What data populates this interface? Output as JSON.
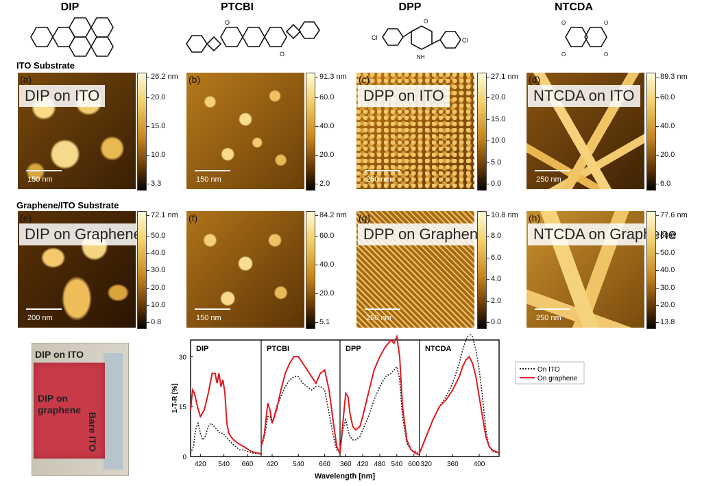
{
  "molecules": [
    {
      "name": "DIP"
    },
    {
      "name": "PTCBI"
    },
    {
      "name": "DPP"
    },
    {
      "name": "NTCDA"
    }
  ],
  "sections": {
    "ito": "ITO Substrate",
    "graphene": "Graphene/ITO Substrate"
  },
  "panels": [
    {
      "letter": "(a)",
      "overlay": "DIP on ITO",
      "scale": "150 nm",
      "cbar_max": "26.2 nm",
      "ticks": [
        "20.0",
        "15.0",
        "10.0",
        "3.3"
      ]
    },
    {
      "letter": "(b)",
      "overlay": "",
      "scale": "150 nm",
      "cbar_max": "91.3 nm",
      "ticks": [
        "60.0",
        "40.0",
        "20.0",
        "2.0"
      ]
    },
    {
      "letter": "(c)",
      "overlay": "DPP on ITO",
      "scale": "250 nm",
      "cbar_max": "27.1 nm",
      "ticks": [
        "20.0",
        "15.0",
        "10.0",
        "5.0",
        "0.0"
      ]
    },
    {
      "letter": "(d)",
      "overlay": "NTCDA on ITO",
      "scale": "250 nm",
      "cbar_max": "89.3 nm",
      "ticks": [
        "60.0",
        "40.0",
        "20.0",
        "6.0"
      ]
    },
    {
      "letter": "(e)",
      "overlay": "DIP on Graphene",
      "scale": "200 nm",
      "cbar_max": "72.1 nm",
      "ticks": [
        "50.0",
        "40.0",
        "30.0",
        "20.0",
        "10.0",
        "0.8"
      ]
    },
    {
      "letter": "(f)",
      "overlay": "",
      "scale": "150 nm",
      "cbar_max": "84.2 nm",
      "ticks": [
        "60.0",
        "40.0",
        "20.0",
        "5.1"
      ]
    },
    {
      "letter": "(g)",
      "overlay": "DPP on Graphene",
      "scale": "250 nm",
      "cbar_max": "10.8 nm",
      "ticks": [
        "8.0",
        "6.0",
        "4.0",
        "2.0",
        "0.0"
      ]
    },
    {
      "letter": "(h)",
      "overlay": "NTCDA on Graphene",
      "scale": "250 nm",
      "cbar_max": "77.6 nm",
      "ticks": [
        "60.0",
        "50.0",
        "40.0",
        "30.0",
        "20.0",
        "13.8"
      ]
    }
  ],
  "photo": {
    "top_label": "DIP on ITO",
    "center_label": "DIP on\ngraphene",
    "side_label": "Bare ITO"
  },
  "chart_data": {
    "type": "line",
    "ylabel": "1-T-R [%]",
    "xlabel": "Wavelength [nm]",
    "ylim": [
      0,
      35
    ],
    "yticks": [
      "0",
      "15",
      "30"
    ],
    "legend": [
      {
        "name": "On ITO",
        "style": "dotted",
        "color": "#222222"
      },
      {
        "name": "On graphene",
        "style": "solid",
        "color": "#e0191c"
      }
    ],
    "legend_placement": "right-outside",
    "subplots": [
      {
        "label": "DIP",
        "xlim": [
          370,
          730
        ],
        "xticks": [
          420,
          540,
          660
        ],
        "series": [
          {
            "name": "On ITO",
            "x": [
              370,
              385,
              395,
              408,
              420,
              432,
              445,
              460,
              475,
              490,
              505,
              520,
              535,
              550,
              565,
              580,
              600,
              620,
              640,
              660,
              690,
              730
            ],
            "y": [
              1,
              3,
              8,
              10,
              7,
              5,
              6,
              9,
              10,
              9,
              8,
              7,
              7,
              6,
              5,
              4,
              3,
              2,
              2,
              1.5,
              1,
              0.8
            ]
          },
          {
            "name": "On graphene",
            "x": [
              370,
              380,
              390,
              405,
              420,
              440,
              460,
              480,
              495,
              505,
              515,
              525,
              535,
              545,
              555,
              565,
              575,
              590,
              610,
              640,
              680,
              730
            ],
            "y": [
              14,
              20,
              19,
              15,
              12,
              14,
              19,
              25,
              25,
              22,
              25,
              21,
              23,
              19,
              10,
              7,
              6,
              5,
              4,
              3,
              1.5,
              0.8
            ]
          }
        ]
      },
      {
        "label": "PTCBI",
        "xlim": [
          370,
          730
        ],
        "xticks": [
          420,
          540,
          660
        ],
        "series": [
          {
            "name": "On ITO",
            "x": [
              370,
              385,
              400,
              410,
              420,
              440,
              460,
              480,
              500,
              520,
              540,
              560,
              580,
              600,
              620,
              640,
              660,
              680,
              700,
              715,
              730
            ],
            "y": [
              3,
              6,
              12,
              12,
              10,
              15,
              18,
              21,
              23,
              24,
              24,
              22,
              21,
              20,
              21,
              21,
              20,
              13,
              6,
              2,
              1
            ]
          },
          {
            "name": "On graphene",
            "x": [
              370,
              385,
              400,
              410,
              420,
              440,
              460,
              480,
              500,
              520,
              540,
              560,
              580,
              600,
              620,
              640,
              660,
              680,
              700,
              715,
              730
            ],
            "y": [
              3,
              7,
              16,
              14,
              10,
              14,
              20,
              25,
              28,
              30,
              30,
              28,
              26,
              24,
              22,
              25,
              26,
              20,
              10,
              3,
              1
            ]
          }
        ]
      },
      {
        "label": "DPP",
        "xlim": [
          340,
          620
        ],
        "xticks": [
          360,
          420,
          480,
          540,
          600
        ],
        "series": [
          {
            "name": "On ITO",
            "x": [
              340,
              350,
              360,
              368,
              375,
              385,
              395,
              410,
              420,
              440,
              460,
              480,
              500,
              520,
              530,
              540,
              550,
              560,
              575,
              590,
              605,
              620
            ],
            "y": [
              1,
              8,
              11,
              8,
              6,
              5,
              5,
              6,
              8,
              12,
              17,
              21,
              24,
              25,
              26,
              27,
              23,
              12,
              4,
              2,
              1.5,
              1
            ]
          },
          {
            "name": "On graphene",
            "x": [
              340,
              350,
              360,
              368,
              375,
              385,
              395,
              410,
              420,
              440,
              460,
              480,
              500,
              520,
              530,
              540,
              550,
              560,
              575,
              590,
              605,
              620
            ],
            "y": [
              1,
              10,
              19,
              18,
              13,
              9,
              8,
              9,
              12,
              19,
              26,
              30,
              33,
              35,
              34,
              36,
              30,
              15,
              5,
              2,
              1,
              0.5
            ]
          }
        ]
      },
      {
        "label": "NTCDA",
        "xlim": [
          310,
          430
        ],
        "xticks": [
          320,
          360,
          400
        ],
        "series": [
          {
            "name": "On ITO",
            "x": [
              310,
              320,
              330,
              340,
              350,
              360,
              370,
              375,
              380,
              385,
              390,
              395,
              400,
              405,
              410,
              415,
              420,
              430
            ],
            "y": [
              1,
              6,
              11,
              15,
              18,
              22,
              28,
              32,
              35,
              37,
              36,
              32,
              26,
              18,
              8,
              3,
              1.5,
              1
            ]
          },
          {
            "name": "On graphene",
            "x": [
              310,
              320,
              330,
              340,
              350,
              360,
              370,
              375,
              380,
              385,
              390,
              395,
              400,
              405,
              410,
              415,
              420,
              430
            ],
            "y": [
              1,
              6,
              11,
              15,
              17,
              20,
              24,
              27,
              29,
              30,
              28,
              24,
              18,
              12,
              6,
              3,
              2,
              1
            ]
          }
        ]
      }
    ]
  }
}
